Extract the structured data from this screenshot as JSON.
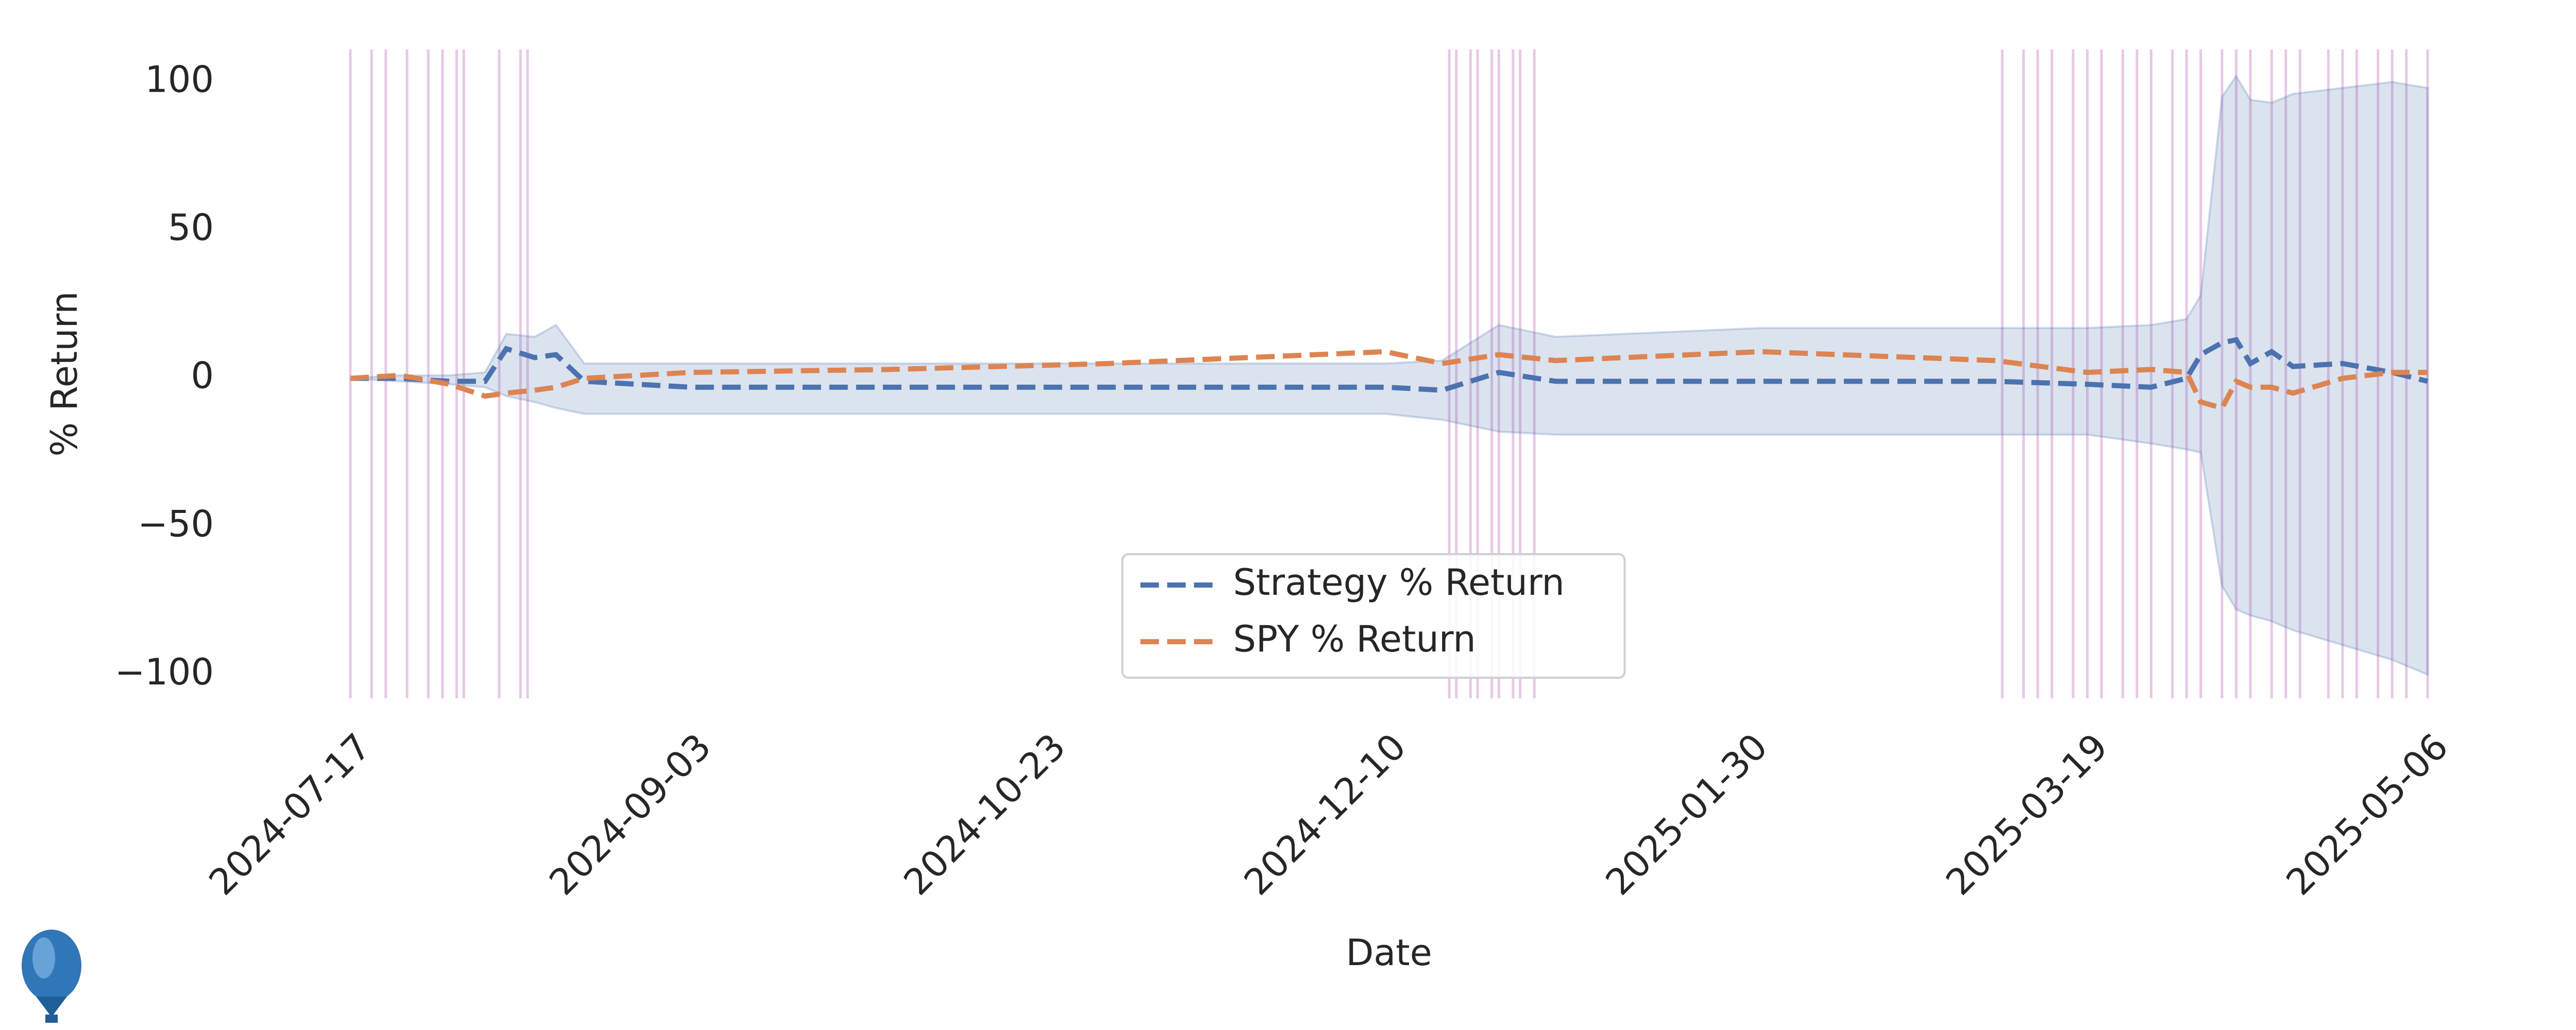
{
  "chart_data": {
    "type": "line",
    "xlabel": "Date",
    "ylabel": "% Return",
    "x": [
      "2024-07-17",
      "2024-07-24",
      "2024-07-31",
      "2024-08-05",
      "2024-08-08",
      "2024-08-12",
      "2024-08-15",
      "2024-08-19",
      "2024-09-03",
      "2024-10-01",
      "2024-11-01",
      "2024-12-10",
      "2024-12-18",
      "2024-12-26",
      "2025-01-03",
      "2025-02-01",
      "2025-03-06",
      "2025-03-19",
      "2025-03-28",
      "2025-04-02",
      "2025-04-04",
      "2025-04-07",
      "2025-04-09",
      "2025-04-11",
      "2025-04-14",
      "2025-04-17",
      "2025-04-24",
      "2025-05-01",
      "2025-05-06"
    ],
    "series": [
      {
        "name": "Strategy % Return",
        "color": "#4c72b0",
        "values": [
          0,
          0,
          -1,
          -1,
          10,
          7,
          8,
          -1,
          -3,
          -3,
          -3,
          -3,
          -4,
          2,
          -1,
          -1,
          -1,
          -2,
          -3,
          0,
          8,
          12,
          13,
          5,
          9,
          4,
          5,
          2,
          -1
        ],
        "lower": [
          0,
          -1,
          -2,
          -3,
          -6,
          -8,
          -10,
          -12,
          -12,
          -12,
          -12,
          -12,
          -14,
          -18,
          -19,
          -19,
          -19,
          -19,
          -22,
          -24,
          -25,
          -70,
          -78,
          -80,
          -82,
          -85,
          -90,
          -95,
          -100
        ],
        "upper": [
          0,
          1,
          1,
          2,
          15,
          14,
          18,
          5,
          5,
          5,
          5,
          5,
          6,
          18,
          14,
          17,
          17,
          17,
          18,
          20,
          28,
          95,
          102,
          94,
          93,
          96,
          98,
          100,
          98
        ]
      },
      {
        "name": "SPY % Return",
        "color": "#dd8452",
        "values": [
          0,
          1,
          -2,
          -6,
          -5,
          -4,
          -3,
          0,
          2,
          3,
          5,
          9,
          5,
          8,
          6,
          9,
          6,
          2,
          3,
          2,
          -8,
          -10,
          -1,
          -3,
          -3,
          -5,
          0,
          2,
          2
        ]
      }
    ],
    "vlines": [
      "2024-07-17",
      "2024-07-20",
      "2024-07-22",
      "2024-07-25",
      "2024-07-28",
      "2024-07-30",
      "2024-08-01",
      "2024-08-02",
      "2024-08-07",
      "2024-08-10",
      "2024-08-11",
      "2024-12-19",
      "2024-12-20",
      "2024-12-22",
      "2024-12-23",
      "2024-12-25",
      "2024-12-26",
      "2024-12-28",
      "2024-12-29",
      "2024-12-31",
      "2025-03-07",
      "2025-03-10",
      "2025-03-12",
      "2025-03-14",
      "2025-03-17",
      "2025-03-19",
      "2025-03-21",
      "2025-03-24",
      "2025-03-26",
      "2025-03-28",
      "2025-03-31",
      "2025-04-02",
      "2025-04-04",
      "2025-04-07",
      "2025-04-09",
      "2025-04-11",
      "2025-04-14",
      "2025-04-16",
      "2025-04-18",
      "2025-04-22",
      "2025-04-24",
      "2025-04-26",
      "2025-04-29",
      "2025-05-01",
      "2025-05-03",
      "2025-05-06"
    ],
    "vline_color": "#e8c8e6",
    "xlim": [
      "2024-07-17",
      "2025-05-06"
    ],
    "xticks": [
      "2024-07-17",
      "2024-09-03",
      "2024-10-23",
      "2024-12-10",
      "2025-01-30",
      "2025-03-19",
      "2025-05-06"
    ],
    "ylim": [
      -108,
      111
    ],
    "yticks": [
      {
        "value": -100,
        "label": "−100"
      },
      {
        "value": -50,
        "label": "−50"
      },
      0,
      50,
      100
    ],
    "legend": "lower center"
  }
}
